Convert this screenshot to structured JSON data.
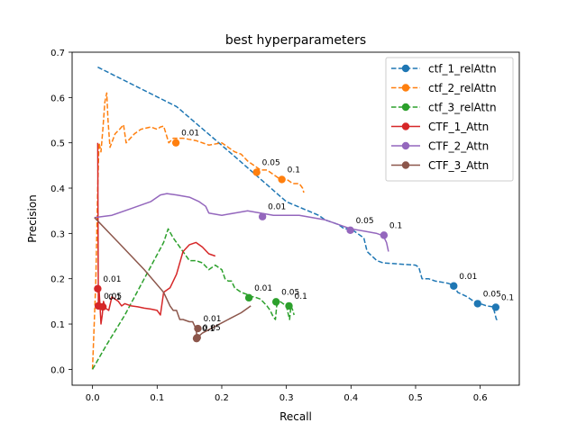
{
  "chart_data": {
    "type": "line",
    "title": "best hyperparameters",
    "xlabel": "Recall",
    "ylabel": "Precision",
    "xlim": [
      -0.0316,
      0.6605
    ],
    "ylim": [
      -0.035,
      0.7
    ],
    "x_ticks": [
      {
        "value": 0.0,
        "label": "0.0"
      },
      {
        "value": 0.1,
        "label": "0.1"
      },
      {
        "value": 0.2,
        "label": "0.2"
      },
      {
        "value": 0.3,
        "label": "0.3"
      },
      {
        "value": 0.4,
        "label": "0.4"
      },
      {
        "value": 0.5,
        "label": "0.5"
      },
      {
        "value": 0.6,
        "label": "0.6"
      }
    ],
    "y_ticks": [
      {
        "value": 0.0,
        "label": "0.0"
      },
      {
        "value": 0.1,
        "label": "0.1"
      },
      {
        "value": 0.2,
        "label": "0.2"
      },
      {
        "value": 0.3,
        "label": "0.3"
      },
      {
        "value": 0.4,
        "label": "0.4"
      },
      {
        "value": 0.5,
        "label": "0.5"
      },
      {
        "value": 0.6,
        "label": "0.6"
      },
      {
        "value": 0.7,
        "label": "0.7"
      }
    ],
    "grid": false,
    "legend_position": "top-right",
    "series": [
      {
        "name": "ctf_1_relAttn",
        "color": "#1f77b4",
        "dashed": true,
        "points": [
          [
            0.008,
            0.667
          ],
          [
            0.13,
            0.58
          ],
          [
            0.22,
            0.47
          ],
          [
            0.3,
            0.37
          ],
          [
            0.35,
            0.34
          ],
          [
            0.36,
            0.33
          ],
          [
            0.38,
            0.32
          ],
          [
            0.39,
            0.31
          ],
          [
            0.4,
            0.31
          ],
          [
            0.42,
            0.29
          ],
          [
            0.425,
            0.26
          ],
          [
            0.44,
            0.24
          ],
          [
            0.45,
            0.235
          ],
          [
            0.5,
            0.23
          ],
          [
            0.505,
            0.225
          ],
          [
            0.51,
            0.2
          ],
          [
            0.52,
            0.2
          ],
          [
            0.53,
            0.195
          ],
          [
            0.55,
            0.19
          ],
          [
            0.56,
            0.185
          ],
          [
            0.565,
            0.17
          ],
          [
            0.58,
            0.16
          ],
          [
            0.59,
            0.15
          ],
          [
            0.6,
            0.145
          ],
          [
            0.61,
            0.14
          ],
          [
            0.62,
            0.138
          ],
          [
            0.625,
            0.11
          ],
          [
            0.627,
            0.11
          ]
        ],
        "markers": [
          {
            "x": 0.559,
            "y": 0.184,
            "label": "0.01"
          },
          {
            "x": 0.596,
            "y": 0.145,
            "label": "0.05"
          },
          {
            "x": 0.624,
            "y": 0.137,
            "label": "0.1"
          }
        ]
      },
      {
        "name": "ctf_2_relAttn",
        "color": "#ff7f0e",
        "dashed": true,
        "points": [
          [
            0.0,
            0.0
          ],
          [
            0.005,
            0.19
          ],
          [
            0.008,
            0.4
          ],
          [
            0.01,
            0.5
          ],
          [
            0.013,
            0.48
          ],
          [
            0.016,
            0.53
          ],
          [
            0.019,
            0.59
          ],
          [
            0.022,
            0.61
          ],
          [
            0.024,
            0.55
          ],
          [
            0.027,
            0.49
          ],
          [
            0.035,
            0.52
          ],
          [
            0.042,
            0.53
          ],
          [
            0.048,
            0.54
          ],
          [
            0.052,
            0.5
          ],
          [
            0.065,
            0.52
          ],
          [
            0.075,
            0.53
          ],
          [
            0.09,
            0.535
          ],
          [
            0.1,
            0.53
          ],
          [
            0.105,
            0.535
          ],
          [
            0.11,
            0.537
          ],
          [
            0.118,
            0.5
          ],
          [
            0.125,
            0.51
          ],
          [
            0.14,
            0.51
          ],
          [
            0.16,
            0.505
          ],
          [
            0.18,
            0.495
          ],
          [
            0.2,
            0.5
          ],
          [
            0.22,
            0.48
          ],
          [
            0.23,
            0.475
          ],
          [
            0.24,
            0.46
          ],
          [
            0.25,
            0.45
          ],
          [
            0.26,
            0.44
          ],
          [
            0.27,
            0.44
          ],
          [
            0.28,
            0.43
          ],
          [
            0.29,
            0.42
          ],
          [
            0.3,
            0.42
          ],
          [
            0.31,
            0.41
          ],
          [
            0.32,
            0.41
          ],
          [
            0.325,
            0.4
          ],
          [
            0.327,
            0.39
          ]
        ],
        "markers": [
          {
            "x": 0.129,
            "y": 0.5,
            "label": "0.01"
          },
          {
            "x": 0.254,
            "y": 0.435,
            "label": "0.05"
          },
          {
            "x": 0.293,
            "y": 0.419,
            "label": "0.1"
          }
        ]
      },
      {
        "name": "ctf_3_relAttn",
        "color": "#2ca02c",
        "dashed": true,
        "points": [
          [
            0.0,
            0.0
          ],
          [
            0.02,
            0.05
          ],
          [
            0.05,
            0.12
          ],
          [
            0.08,
            0.2
          ],
          [
            0.11,
            0.28
          ],
          [
            0.117,
            0.31
          ],
          [
            0.125,
            0.29
          ],
          [
            0.14,
            0.26
          ],
          [
            0.15,
            0.24
          ],
          [
            0.16,
            0.24
          ],
          [
            0.17,
            0.235
          ],
          [
            0.18,
            0.22
          ],
          [
            0.19,
            0.23
          ],
          [
            0.2,
            0.22
          ],
          [
            0.205,
            0.2
          ],
          [
            0.21,
            0.195
          ],
          [
            0.215,
            0.195
          ],
          [
            0.22,
            0.18
          ],
          [
            0.23,
            0.17
          ],
          [
            0.24,
            0.165
          ],
          [
            0.245,
            0.16
          ],
          [
            0.25,
            0.16
          ],
          [
            0.26,
            0.155
          ],
          [
            0.27,
            0.14
          ],
          [
            0.275,
            0.13
          ],
          [
            0.28,
            0.115
          ],
          [
            0.283,
            0.11
          ],
          [
            0.285,
            0.14
          ],
          [
            0.29,
            0.15
          ],
          [
            0.3,
            0.14
          ],
          [
            0.305,
            0.11
          ],
          [
            0.307,
            0.14
          ],
          [
            0.31,
            0.13
          ],
          [
            0.312,
            0.12
          ]
        ],
        "markers": [
          {
            "x": 0.242,
            "y": 0.158,
            "label": "0.01"
          },
          {
            "x": 0.284,
            "y": 0.149,
            "label": "0.05"
          },
          {
            "x": 0.304,
            "y": 0.14,
            "label": "0.1"
          }
        ]
      },
      {
        "name": "CTF_1_Attn",
        "color": "#d62728",
        "dashed": false,
        "points": [
          [
            0.008,
            0.5
          ],
          [
            0.009,
            0.14
          ],
          [
            0.01,
            0.18
          ],
          [
            0.012,
            0.13
          ],
          [
            0.013,
            0.1
          ],
          [
            0.015,
            0.12
          ],
          [
            0.017,
            0.15
          ],
          [
            0.02,
            0.135
          ],
          [
            0.025,
            0.13
          ],
          [
            0.03,
            0.16
          ],
          [
            0.035,
            0.155
          ],
          [
            0.04,
            0.15
          ],
          [
            0.045,
            0.14
          ],
          [
            0.05,
            0.145
          ],
          [
            0.06,
            0.14
          ],
          [
            0.07,
            0.138
          ],
          [
            0.08,
            0.135
          ],
          [
            0.09,
            0.133
          ],
          [
            0.1,
            0.13
          ],
          [
            0.105,
            0.12
          ],
          [
            0.11,
            0.17
          ],
          [
            0.12,
            0.18
          ],
          [
            0.13,
            0.21
          ],
          [
            0.14,
            0.26
          ],
          [
            0.15,
            0.275
          ],
          [
            0.16,
            0.28
          ],
          [
            0.17,
            0.27
          ],
          [
            0.18,
            0.255
          ],
          [
            0.19,
            0.25
          ]
        ],
        "markers": [
          {
            "x": 0.008,
            "y": 0.178,
            "label": "0.01"
          },
          {
            "x": 0.009,
            "y": 0.14,
            "label": "0.05"
          },
          {
            "x": 0.016,
            "y": 0.138,
            "label": "0.1"
          }
        ]
      },
      {
        "name": "CTF_2_Attn",
        "color": "#9467bd",
        "dashed": false,
        "points": [
          [
            0.003,
            0.335
          ],
          [
            0.03,
            0.34
          ],
          [
            0.06,
            0.355
          ],
          [
            0.09,
            0.37
          ],
          [
            0.105,
            0.385
          ],
          [
            0.115,
            0.388
          ],
          [
            0.13,
            0.385
          ],
          [
            0.15,
            0.38
          ],
          [
            0.165,
            0.37
          ],
          [
            0.175,
            0.36
          ],
          [
            0.18,
            0.345
          ],
          [
            0.2,
            0.34
          ],
          [
            0.22,
            0.345
          ],
          [
            0.24,
            0.35
          ],
          [
            0.26,
            0.345
          ],
          [
            0.28,
            0.34
          ],
          [
            0.3,
            0.34
          ],
          [
            0.32,
            0.34
          ],
          [
            0.34,
            0.335
          ],
          [
            0.36,
            0.33
          ],
          [
            0.38,
            0.32
          ],
          [
            0.4,
            0.31
          ],
          [
            0.42,
            0.305
          ],
          [
            0.44,
            0.3
          ],
          [
            0.45,
            0.295
          ],
          [
            0.455,
            0.28
          ],
          [
            0.458,
            0.26
          ]
        ],
        "markers": [
          {
            "x": 0.263,
            "y": 0.337,
            "label": "0.01"
          },
          {
            "x": 0.399,
            "y": 0.307,
            "label": "0.05"
          },
          {
            "x": 0.451,
            "y": 0.296,
            "label": "0.1"
          }
        ]
      },
      {
        "name": "CTF_3_Attn",
        "color": "#8c564b",
        "dashed": false,
        "points": [
          [
            0.003,
            0.335
          ],
          [
            0.04,
            0.28
          ],
          [
            0.08,
            0.22
          ],
          [
            0.11,
            0.17
          ],
          [
            0.12,
            0.14
          ],
          [
            0.125,
            0.13
          ],
          [
            0.13,
            0.13
          ],
          [
            0.135,
            0.11
          ],
          [
            0.14,
            0.11
          ],
          [
            0.15,
            0.105
          ],
          [
            0.155,
            0.105
          ],
          [
            0.16,
            0.09
          ],
          [
            0.162,
            0.07
          ],
          [
            0.17,
            0.08
          ],
          [
            0.19,
            0.095
          ],
          [
            0.21,
            0.11
          ],
          [
            0.23,
            0.125
          ],
          [
            0.245,
            0.14
          ]
        ],
        "markers": [
          {
            "x": 0.163,
            "y": 0.09,
            "label": "0.01"
          },
          {
            "x": 0.162,
            "y": 0.07,
            "label": "0.05"
          },
          {
            "x": 0.161,
            "y": 0.068,
            "label": "0.1"
          }
        ]
      }
    ]
  }
}
